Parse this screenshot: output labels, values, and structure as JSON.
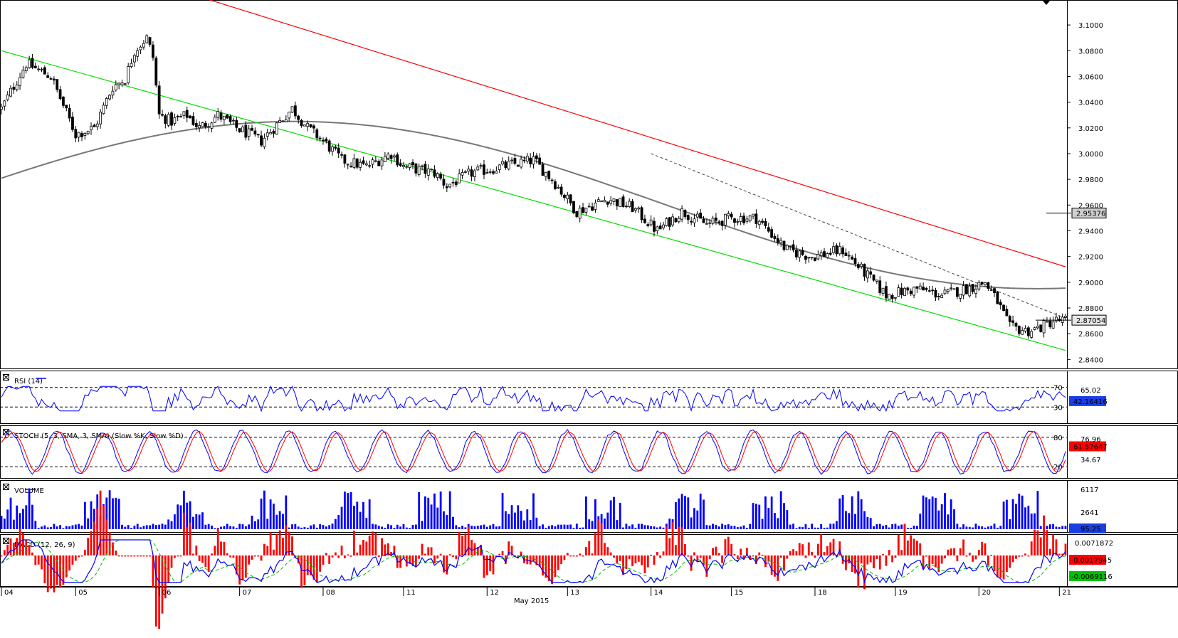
{
  "chart_data": [
    {
      "type": "candlestick",
      "panel": "price",
      "y_ticks": [
        "3.1000",
        "3.0800",
        "3.0600",
        "3.0400",
        "3.0200",
        "3.0000",
        "2.9800",
        "2.9600",
        "2.9400",
        "2.9200",
        "2.9000",
        "2.8800",
        "2.8600",
        "2.8400"
      ],
      "ylim": [
        2.833,
        3.115
      ],
      "moving_average_last": "2.95376",
      "last_price": "2.87054",
      "x_labels": [
        "04",
        "05",
        "06",
        "07",
        "08",
        "11",
        "12",
        "13",
        "14",
        "15",
        "18",
        "19",
        "20",
        "21"
      ],
      "month_label": "May 2015",
      "path": [
        [
          0,
          3.035
        ],
        [
          8,
          3.07
        ],
        [
          16,
          3.06
        ],
        [
          24,
          3.015
        ],
        [
          30,
          3.02
        ],
        [
          36,
          3.052
        ],
        [
          40,
          3.058
        ],
        [
          43,
          3.08
        ],
        [
          47,
          3.09
        ],
        [
          49,
          3.075
        ],
        [
          51,
          3.03
        ],
        [
          55,
          3.025
        ],
        [
          60,
          3.03
        ],
        [
          64,
          3.02
        ],
        [
          70,
          3.03
        ],
        [
          76,
          3.02
        ],
        [
          84,
          3.01
        ],
        [
          94,
          3.035
        ],
        [
          99,
          3.02
        ],
        [
          104,
          3.01
        ],
        [
          110,
          2.995
        ],
        [
          118,
          2.99
        ],
        [
          126,
          3.0
        ],
        [
          130,
          2.99
        ],
        [
          140,
          2.985
        ],
        [
          144,
          2.975
        ],
        [
          152,
          2.985
        ],
        [
          162,
          2.99
        ],
        [
          172,
          2.995
        ],
        [
          178,
          2.98
        ],
        [
          186,
          2.955
        ],
        [
          196,
          2.965
        ],
        [
          204,
          2.958
        ],
        [
          212,
          2.94
        ],
        [
          220,
          2.955
        ],
        [
          228,
          2.945
        ],
        [
          236,
          2.95
        ],
        [
          244,
          2.95
        ],
        [
          250,
          2.935
        ],
        [
          254,
          2.925
        ],
        [
          262,
          2.92
        ],
        [
          272,
          2.925
        ],
        [
          280,
          2.905
        ],
        [
          286,
          2.89
        ],
        [
          296,
          2.895
        ],
        [
          304,
          2.89
        ],
        [
          312,
          2.895
        ],
        [
          318,
          2.9
        ],
        [
          322,
          2.885
        ],
        [
          326,
          2.865
        ],
        [
          332,
          2.862
        ],
        [
          336,
          2.865
        ],
        [
          340,
          2.87
        ],
        [
          344,
          2.8705
        ]
      ],
      "resistance_channel": [
        [
          0,
          3.17
        ],
        [
          344,
          2.912
        ]
      ],
      "support_channel": [
        [
          0,
          3.08
        ],
        [
          344,
          2.847
        ]
      ],
      "dashed_trendline": [
        [
          210,
          3.0
        ],
        [
          344,
          2.872
        ]
      ]
    },
    {
      "type": "line",
      "panel": "rsi",
      "title": "RSI (14)",
      "levels": [
        "70",
        "30"
      ],
      "right_labels": [
        "65.02"
      ],
      "last_value": "42.16416",
      "ylim": [
        0,
        100
      ]
    },
    {
      "type": "line",
      "panel": "stoch",
      "title": "STOCH (5, 3, SMA, 3, SMA) (Slow %K, Slow %D)",
      "series": [
        {
          "name": "Slow %K",
          "color": "#0000ff"
        },
        {
          "name": "Slow %D",
          "color": "#ff0000"
        }
      ],
      "levels": [
        "80",
        "20"
      ],
      "right_labels": [
        "76.96",
        "34.67"
      ],
      "last_value": "61.57647",
      "ylim": [
        0,
        100
      ]
    },
    {
      "type": "bar",
      "panel": "volume",
      "title": "VOLUME",
      "right_labels": [
        "6117",
        "2641"
      ],
      "last_value": "95.25",
      "ylim": [
        0,
        7200
      ]
    },
    {
      "type": "bar",
      "panel": "macd",
      "title": "MACD (12, 26, 9)",
      "series": [
        {
          "name": "MACD",
          "color": "#0000ff"
        },
        {
          "name": "MACD Signal",
          "color": "#00c000"
        },
        {
          "name": "MACD Hist",
          "color": "#ff0000"
        }
      ],
      "right_labels": [
        "0.0071872"
      ],
      "hist_last": "0.0017945",
      "macd_last": "-0.0069116",
      "ylim": [
        -0.0125,
        0.0095
      ]
    }
  ],
  "colors": {
    "red_channel": "#ff0000",
    "green_channel": "#00dd00",
    "moving_average": "#777777",
    "candles": "#000000",
    "blue": "#0000ff",
    "red": "#ff0000",
    "green": "#00c000"
  }
}
